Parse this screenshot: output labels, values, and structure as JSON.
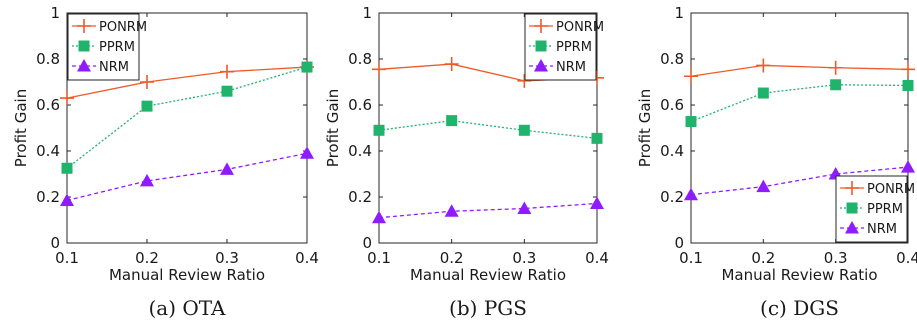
{
  "series_styles": [
    {
      "name": "PONRM",
      "color": "#f05a28",
      "marker": "plus",
      "dash": ""
    },
    {
      "name": "PPRM",
      "color": "#1fb36b",
      "marker": "square",
      "dash": "2 2"
    },
    {
      "name": "NRM",
      "color": "#8f1bff",
      "marker": "triangle",
      "dash": "4 3"
    }
  ],
  "chart_data": [
    {
      "type": "line",
      "caption": "(a) OTA",
      "xlabel": "Manual Review Ratio",
      "ylabel": "Profit Gain",
      "x": [
        0.1,
        0.2,
        0.3,
        0.4
      ],
      "xticks": [
        "0.1",
        "0.2",
        "0.3",
        "0.4"
      ],
      "xlim": [
        0.1,
        0.4
      ],
      "ylim": [
        0,
        1
      ],
      "yticks": [
        "0",
        "0.2",
        "0.4",
        "0.6",
        "0.8",
        "1"
      ],
      "legend": "top-left",
      "series": [
        {
          "name": "PONRM",
          "values": [
            0.63,
            0.7,
            0.745,
            0.765
          ]
        },
        {
          "name": "PPRM",
          "values": [
            0.325,
            0.595,
            0.66,
            0.765
          ]
        },
        {
          "name": "NRM",
          "values": [
            0.185,
            0.27,
            0.32,
            0.39
          ]
        }
      ]
    },
    {
      "type": "line",
      "caption": "(b) PGS",
      "xlabel": "Manual Review Ratio",
      "ylabel": "Profit Gain",
      "x": [
        0.1,
        0.2,
        0.3,
        0.4
      ],
      "xticks": [
        "0.1",
        "0.2",
        "0.3",
        "0.4"
      ],
      "xlim": [
        0.1,
        0.4
      ],
      "ylim": [
        0,
        1
      ],
      "yticks": [
        "0",
        "0.2",
        "0.4",
        "0.6",
        "0.8",
        "1"
      ],
      "legend": "top-right",
      "series": [
        {
          "name": "PONRM",
          "values": [
            0.755,
            0.778,
            0.705,
            0.718
          ]
        },
        {
          "name": "PPRM",
          "values": [
            0.49,
            0.532,
            0.49,
            0.455
          ]
        },
        {
          "name": "NRM",
          "values": [
            0.11,
            0.138,
            0.15,
            0.172
          ]
        }
      ]
    },
    {
      "type": "line",
      "caption": "(c) DGS",
      "xlabel": "Manual Review Ratio",
      "ylabel": "Profit Gain",
      "x": [
        0.1,
        0.2,
        0.3,
        0.4
      ],
      "xticks": [
        "0.1",
        "0.2",
        "0.3",
        "0.4"
      ],
      "xlim": [
        0.1,
        0.4
      ],
      "ylim": [
        0,
        1
      ],
      "yticks": [
        "0",
        "0.2",
        "0.4",
        "0.6",
        "0.8",
        "1"
      ],
      "legend": "bottom-right",
      "series": [
        {
          "name": "PONRM",
          "values": [
            0.725,
            0.772,
            0.762,
            0.755
          ]
        },
        {
          "name": "PPRM",
          "values": [
            0.528,
            0.652,
            0.688,
            0.685
          ]
        },
        {
          "name": "NRM",
          "values": [
            0.21,
            0.245,
            0.3,
            0.33
          ]
        }
      ]
    }
  ]
}
